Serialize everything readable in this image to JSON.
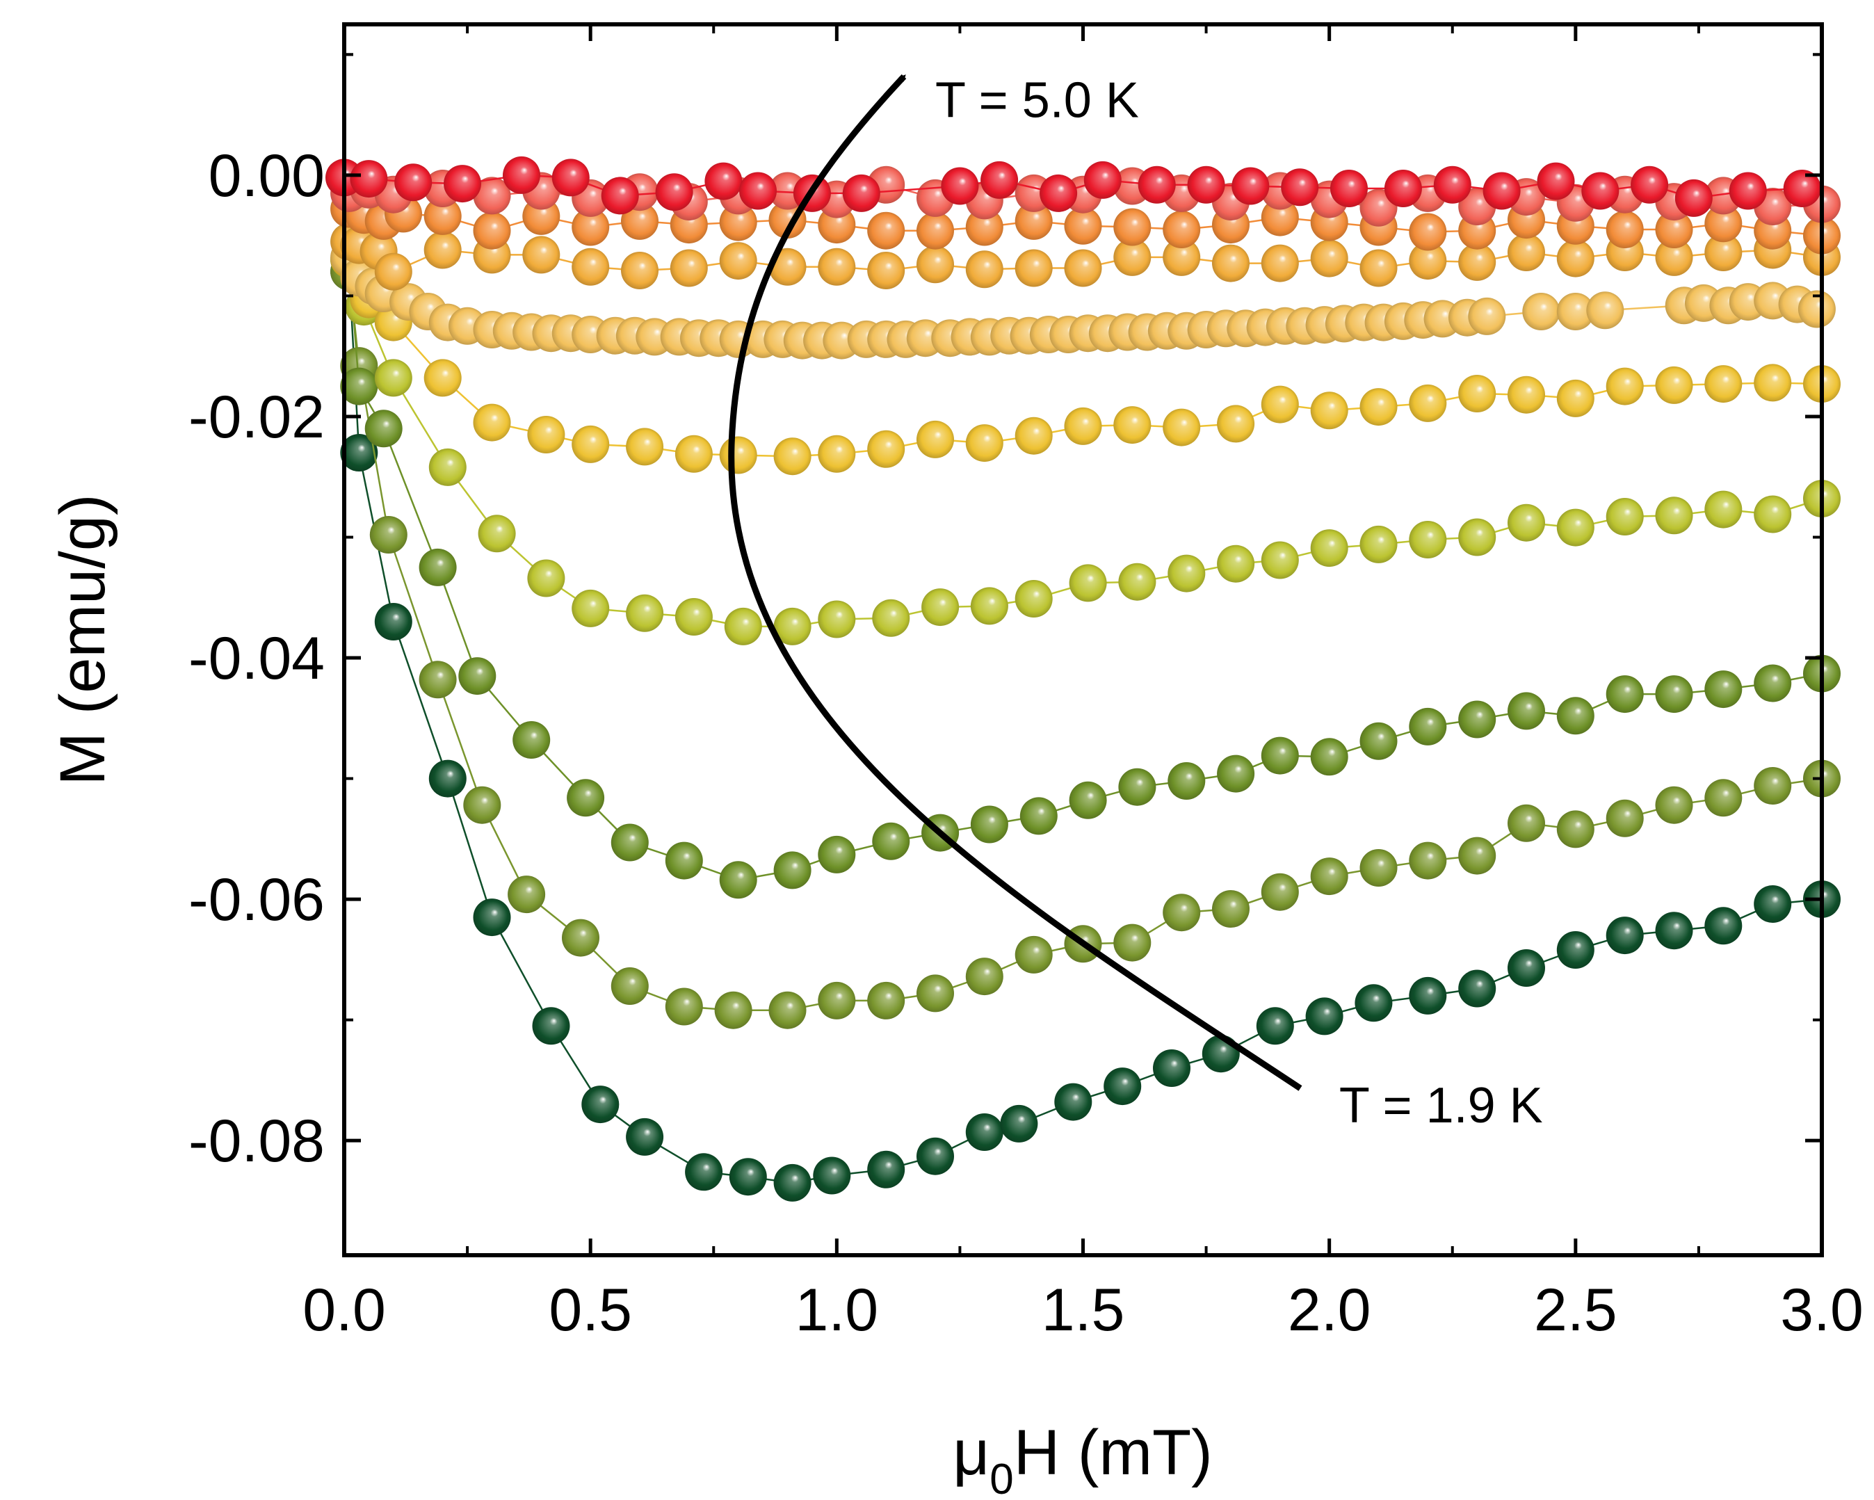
{
  "chart_data": {
    "type": "scatter",
    "title": "",
    "xlabel": {
      "main": "μ",
      "sub": "0",
      "rest": "H (mT)"
    },
    "ylabel": "M (emu/g)",
    "xlim": [
      0,
      3.0
    ],
    "ylim": [
      -0.0895,
      0.0125
    ],
    "xticks": [
      0.0,
      0.5,
      1.0,
      1.5,
      2.0,
      2.5,
      3.0
    ],
    "xtick_labels": [
      "0.0",
      "0.5",
      "1.0",
      "1.5",
      "2.0",
      "2.5",
      "3.0"
    ],
    "yticks": [
      0.0,
      -0.02,
      -0.04,
      -0.06,
      -0.08
    ],
    "ytick_labels": [
      "0.00",
      "-0.02",
      "-0.04",
      "-0.06",
      "-0.08"
    ],
    "grid": false,
    "legend": "none",
    "annotations": [
      {
        "text": "T = 5.0 K",
        "x": 1.2,
        "y": 0.0048
      },
      {
        "text": "T = 1.9 K",
        "x": 2.02,
        "y": -0.0785
      }
    ],
    "series": [
      {
        "color": "#0f4f2a",
        "x": [
          0.01,
          0.03,
          0.1,
          0.21,
          0.3,
          0.42,
          0.52,
          0.61,
          0.73,
          0.82,
          0.91,
          0.99,
          1.1,
          1.2,
          1.3,
          1.37,
          1.48,
          1.58,
          1.68,
          1.78,
          1.89,
          1.99,
          2.09,
          2.2,
          2.3,
          2.4,
          2.5,
          2.6,
          2.7,
          2.8,
          2.9,
          3.0
        ],
        "y": [
          -0.008,
          -0.023,
          -0.037,
          -0.05,
          -0.0615,
          -0.0705,
          -0.077,
          -0.0797,
          -0.0826,
          -0.083,
          -0.0835,
          -0.0829,
          -0.0824,
          -0.0813,
          -0.0793,
          -0.0786,
          -0.0768,
          -0.0755,
          -0.074,
          -0.0728,
          -0.0705,
          -0.0697,
          -0.0686,
          -0.068,
          -0.0674,
          -0.0657,
          -0.0642,
          -0.063,
          -0.0626,
          -0.0622,
          -0.0604,
          -0.06
        ]
      },
      {
        "color": "#7a962e",
        "x": [
          0.01,
          0.03,
          0.09,
          0.19,
          0.28,
          0.37,
          0.48,
          0.58,
          0.69,
          0.79,
          0.9,
          1.0,
          1.1,
          1.2,
          1.3,
          1.4,
          1.5,
          1.6,
          1.7,
          1.8,
          1.9,
          2.0,
          2.1,
          2.2,
          2.3,
          2.4,
          2.5,
          2.6,
          2.7,
          2.8,
          2.9,
          3.0
        ],
        "y": [
          -0.008,
          -0.0158,
          -0.0298,
          -0.0418,
          -0.0522,
          -0.0596,
          -0.0632,
          -0.0672,
          -0.0689,
          -0.0692,
          -0.0692,
          -0.0684,
          -0.0684,
          -0.0678,
          -0.0664,
          -0.0646,
          -0.0637,
          -0.0636,
          -0.0611,
          -0.0608,
          -0.0594,
          -0.0581,
          -0.0574,
          -0.0568,
          -0.0564,
          -0.0537,
          -0.0542,
          -0.0533,
          -0.0522,
          -0.0516,
          -0.0506,
          -0.05
        ]
      },
      {
        "color": "#6e9128",
        "x": [
          0.01,
          0.03,
          0.08,
          0.19,
          0.27,
          0.38,
          0.49,
          0.58,
          0.69,
          0.8,
          0.91,
          1.0,
          1.11,
          1.21,
          1.31,
          1.41,
          1.51,
          1.61,
          1.71,
          1.81,
          1.9,
          2.0,
          2.1,
          2.2,
          2.3,
          2.4,
          2.5,
          2.6,
          2.7,
          2.8,
          2.9,
          3.0
        ],
        "y": [
          -0.007,
          -0.0175,
          -0.021,
          -0.0325,
          -0.0415,
          -0.0468,
          -0.0516,
          -0.0553,
          -0.0568,
          -0.0584,
          -0.0576,
          -0.0563,
          -0.0552,
          -0.0545,
          -0.0538,
          -0.0531,
          -0.0518,
          -0.0507,
          -0.0502,
          -0.0496,
          -0.0481,
          -0.0482,
          -0.0469,
          -0.0457,
          -0.0451,
          -0.0444,
          -0.0448,
          -0.043,
          -0.043,
          -0.0426,
          -0.0421,
          -0.0413
        ]
      },
      {
        "color": "#bcc431",
        "x": [
          0.01,
          0.04,
          0.1,
          0.21,
          0.31,
          0.41,
          0.5,
          0.61,
          0.71,
          0.81,
          0.91,
          1.0,
          1.11,
          1.21,
          1.31,
          1.4,
          1.51,
          1.61,
          1.71,
          1.81,
          1.9,
          2.0,
          2.1,
          2.2,
          2.3,
          2.4,
          2.5,
          2.6,
          2.7,
          2.8,
          2.9,
          3.0
        ],
        "y": [
          -0.007,
          -0.0109,
          -0.0168,
          -0.0242,
          -0.0297,
          -0.0334,
          -0.0359,
          -0.0363,
          -0.0366,
          -0.0374,
          -0.0374,
          -0.0368,
          -0.0367,
          -0.0358,
          -0.0357,
          -0.0351,
          -0.0338,
          -0.0337,
          -0.033,
          -0.0322,
          -0.0319,
          -0.0309,
          -0.0306,
          -0.0302,
          -0.03,
          -0.0288,
          -0.0292,
          -0.0283,
          -0.0282,
          -0.0277,
          -0.0281,
          -0.0268
        ]
      },
      {
        "color": "#eec233",
        "x": [
          0.01,
          0.05,
          0.1,
          0.2,
          0.3,
          0.41,
          0.5,
          0.61,
          0.71,
          0.8,
          0.91,
          1.0,
          1.1,
          1.2,
          1.3,
          1.4,
          1.5,
          1.6,
          1.7,
          1.81,
          1.9,
          2.0,
          2.1,
          2.2,
          2.3,
          2.4,
          2.5,
          2.6,
          2.7,
          2.8,
          2.9,
          3.0
        ],
        "y": [
          -0.007,
          -0.0103,
          -0.0122,
          -0.0168,
          -0.0205,
          -0.0215,
          -0.0223,
          -0.0225,
          -0.0231,
          -0.0232,
          -0.0233,
          -0.0231,
          -0.0227,
          -0.0219,
          -0.0222,
          -0.0216,
          -0.0208,
          -0.0207,
          -0.0209,
          -0.0206,
          -0.019,
          -0.0195,
          -0.0192,
          -0.0189,
          -0.0181,
          -0.0182,
          -0.0185,
          -0.0175,
          -0.0174,
          -0.0173,
          -0.0172,
          -0.0173
        ]
      },
      {
        "color": "#f3c15c",
        "x": [
          0.01,
          0.03,
          0.06,
          0.08,
          0.13,
          0.17,
          0.21,
          0.25,
          0.3,
          0.34,
          0.38,
          0.42,
          0.46,
          0.5,
          0.55,
          0.59,
          0.63,
          0.68,
          0.72,
          0.76,
          0.8,
          0.85,
          0.89,
          0.93,
          0.97,
          1.01,
          1.06,
          1.1,
          1.14,
          1.18,
          1.23,
          1.27,
          1.31,
          1.35,
          1.39,
          1.43,
          1.47,
          1.51,
          1.55,
          1.59,
          1.63,
          1.67,
          1.71,
          1.75,
          1.79,
          1.83,
          1.87,
          1.91,
          1.95,
          1.99,
          2.03,
          2.07,
          2.11,
          2.15,
          2.19,
          2.23,
          2.28,
          2.32,
          2.43,
          2.5,
          2.56,
          2.72,
          2.76,
          2.81,
          2.85,
          2.9,
          2.95,
          2.99
        ],
        "y": [
          -0.0068,
          -0.0085,
          -0.0092,
          -0.0098,
          -0.0105,
          -0.0113,
          -0.0122,
          -0.0125,
          -0.0128,
          -0.0129,
          -0.013,
          -0.0131,
          -0.0131,
          -0.0132,
          -0.0133,
          -0.0133,
          -0.0134,
          -0.0134,
          -0.0135,
          -0.0135,
          -0.0136,
          -0.0136,
          -0.0136,
          -0.0137,
          -0.0137,
          -0.0137,
          -0.0136,
          -0.0136,
          -0.0136,
          -0.0135,
          -0.0135,
          -0.0134,
          -0.0134,
          -0.0133,
          -0.0133,
          -0.0132,
          -0.0132,
          -0.0131,
          -0.0131,
          -0.013,
          -0.013,
          -0.0129,
          -0.0129,
          -0.0128,
          -0.0127,
          -0.0127,
          -0.0126,
          -0.0125,
          -0.0125,
          -0.0124,
          -0.0123,
          -0.0122,
          -0.0122,
          -0.0121,
          -0.012,
          -0.0119,
          -0.0118,
          -0.0117,
          -0.0113,
          -0.0113,
          -0.0112,
          -0.0108,
          -0.0106,
          -0.0108,
          -0.0105,
          -0.0104,
          -0.0107,
          -0.0111
        ]
      },
      {
        "color": "#f1ac3a",
        "x": [
          0.01,
          0.03,
          0.07,
          0.1,
          0.2,
          0.3,
          0.4,
          0.5,
          0.6,
          0.7,
          0.8,
          0.9,
          1.0,
          1.1,
          1.2,
          1.3,
          1.4,
          1.5,
          1.6,
          1.7,
          1.8,
          1.9,
          2.0,
          2.1,
          2.2,
          2.3,
          2.4,
          2.5,
          2.6,
          2.7,
          2.8,
          2.9,
          3.0
        ],
        "y": [
          -0.0055,
          -0.0058,
          -0.0063,
          -0.008,
          -0.0062,
          -0.0066,
          -0.0066,
          -0.0076,
          -0.0079,
          -0.0077,
          -0.0071,
          -0.0076,
          -0.0076,
          -0.0079,
          -0.0074,
          -0.0078,
          -0.0077,
          -0.0077,
          -0.0068,
          -0.0068,
          -0.0073,
          -0.0073,
          -0.0069,
          -0.0077,
          -0.0071,
          -0.0072,
          -0.0064,
          -0.0069,
          -0.0064,
          -0.0068,
          -0.0064,
          -0.0062,
          -0.0068
        ]
      },
      {
        "color": "#f28c38",
        "x": [
          0.01,
          0.04,
          0.08,
          0.12,
          0.2,
          0.3,
          0.4,
          0.5,
          0.6,
          0.7,
          0.8,
          0.9,
          1.0,
          1.1,
          1.2,
          1.3,
          1.4,
          1.5,
          1.6,
          1.7,
          1.8,
          1.9,
          2.0,
          2.1,
          2.2,
          2.3,
          2.4,
          2.5,
          2.6,
          2.7,
          2.8,
          2.9,
          3.0
        ],
        "y": [
          -0.0028,
          -0.0033,
          -0.0038,
          -0.0032,
          -0.0034,
          -0.0046,
          -0.0034,
          -0.0043,
          -0.0038,
          -0.0041,
          -0.0039,
          -0.0037,
          -0.0041,
          -0.0046,
          -0.0046,
          -0.0043,
          -0.0038,
          -0.0042,
          -0.0043,
          -0.0045,
          -0.0041,
          -0.0035,
          -0.0039,
          -0.0043,
          -0.0047,
          -0.0046,
          -0.0037,
          -0.0042,
          -0.0045,
          -0.0045,
          -0.004,
          -0.0046,
          -0.005
        ]
      },
      {
        "color": "#f26357",
        "x": [
          0.01,
          0.05,
          0.1,
          0.2,
          0.3,
          0.4,
          0.5,
          0.6,
          0.7,
          0.8,
          0.9,
          1.0,
          1.1,
          1.2,
          1.3,
          1.4,
          1.5,
          1.6,
          1.7,
          1.8,
          1.9,
          2.0,
          2.1,
          2.2,
          2.3,
          2.4,
          2.5,
          2.6,
          2.7,
          2.8,
          2.9,
          3.0
        ],
        "y": [
          -0.0015,
          -0.0012,
          -0.0016,
          -0.0011,
          -0.0017,
          -0.0013,
          -0.0019,
          -0.0014,
          -0.0022,
          -0.0017,
          -0.0013,
          -0.002,
          -0.0008,
          -0.0019,
          -0.0021,
          -0.0015,
          -0.0016,
          -0.0009,
          -0.0015,
          -0.0022,
          -0.0013,
          -0.002,
          -0.0027,
          -0.0015,
          -0.0026,
          -0.0018,
          -0.0023,
          -0.0016,
          -0.0022,
          -0.0017,
          -0.0026,
          -0.0024
        ]
      },
      {
        "color": "#ea1a2b",
        "x": [
          0.0,
          0.05,
          0.14,
          0.24,
          0.36,
          0.46,
          0.56,
          0.67,
          0.77,
          0.84,
          0.95,
          1.05,
          1.25,
          1.33,
          1.45,
          1.54,
          1.65,
          1.75,
          1.84,
          1.94,
          2.04,
          2.15,
          2.25,
          2.35,
          2.46,
          2.55,
          2.65,
          2.74,
          2.85,
          2.96
        ],
        "y": [
          -0.0002,
          -0.0003,
          -0.0006,
          -0.0007,
          0.0,
          -0.0002,
          -0.0017,
          -0.0014,
          -0.0005,
          -0.0013,
          -0.0015,
          -0.0015,
          -0.0009,
          -0.0004,
          -0.0015,
          -0.0004,
          -0.0008,
          -0.0008,
          -0.0009,
          -0.001,
          -0.0011,
          -0.0011,
          -0.0008,
          -0.0013,
          -0.0005,
          -0.0013,
          -0.0008,
          -0.0019,
          -0.0013,
          -0.0011
        ]
      }
    ]
  }
}
